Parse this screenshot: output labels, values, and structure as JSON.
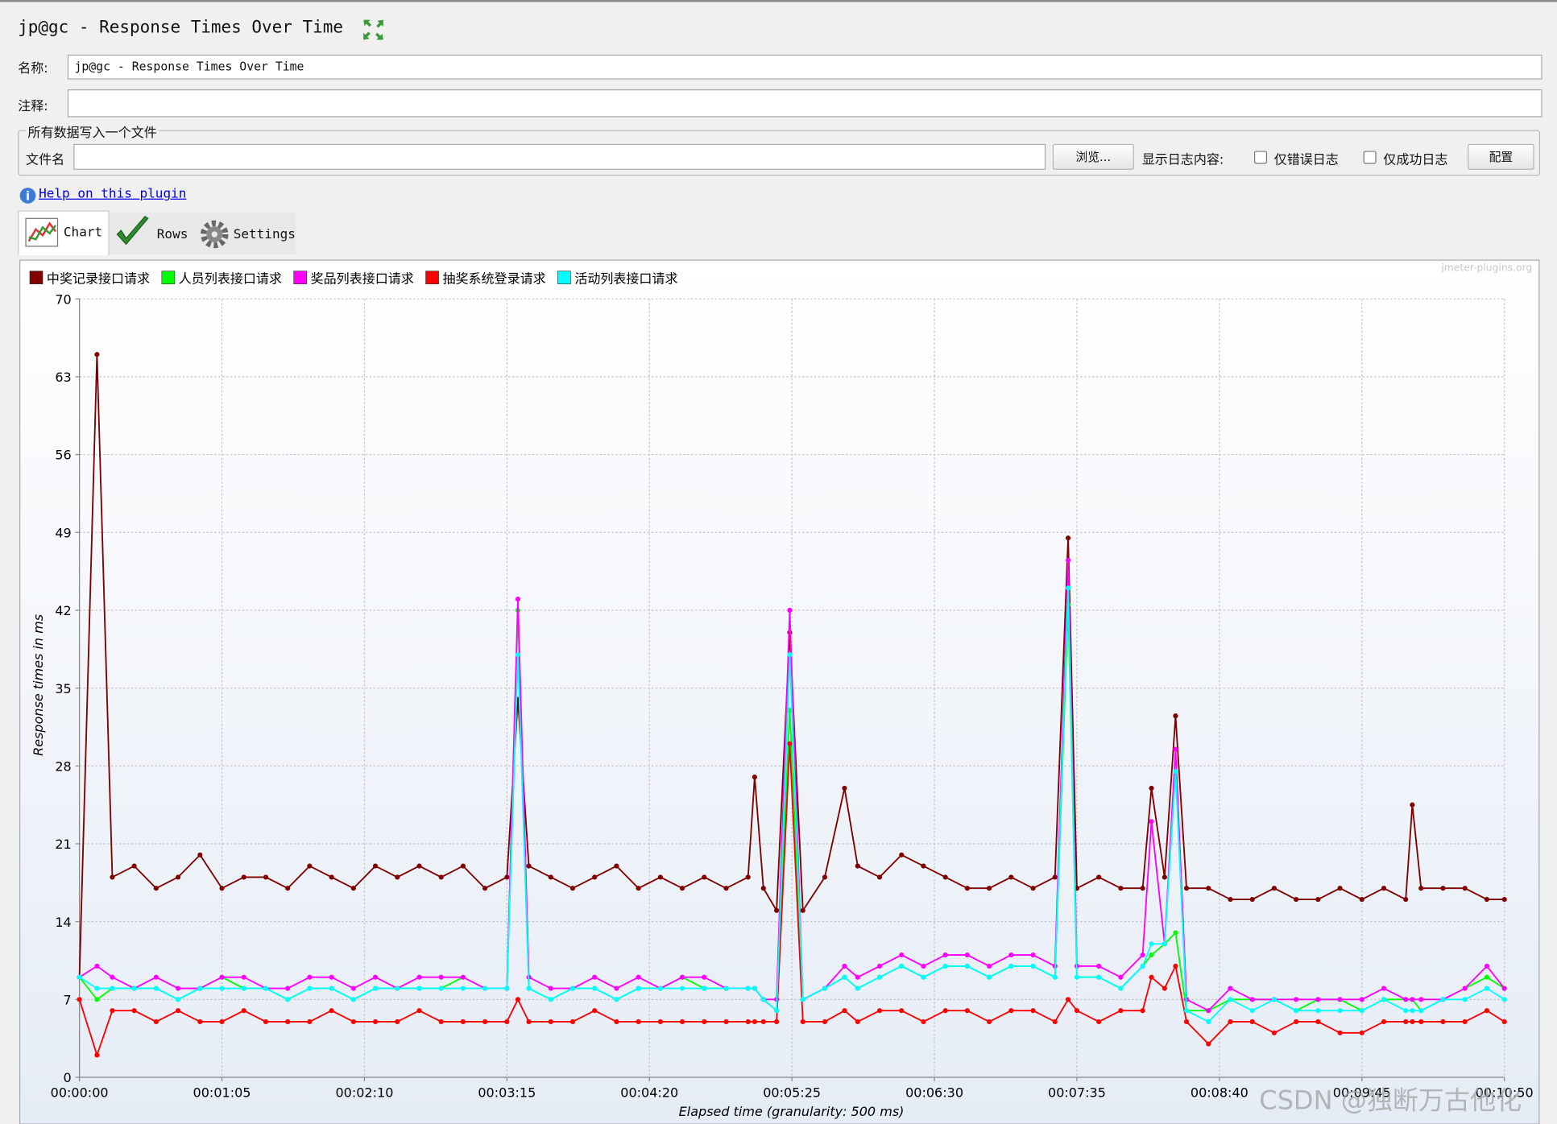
{
  "header": {
    "title": "jp@gc - Response Times Over Time"
  },
  "form": {
    "name_label": "名称:",
    "name_value": "jp@gc - Response Times Over Time",
    "comment_label": "注释:",
    "file_group": "所有数据写入一个文件",
    "file_label": "文件名",
    "browse": "浏览...",
    "log_label": "显示日志内容:",
    "errors_only": "仅错误日志",
    "success_only": "仅成功日志",
    "configure": "配置"
  },
  "help_link": "Help on this plugin",
  "tabs": [
    "Chart",
    "Rows",
    "Settings"
  ],
  "watermarks": {
    "plugin": "jmeter-plugins.org",
    "csdn": "CSDN @独断万古他化"
  },
  "chart_data": {
    "type": "line",
    "y_label": "Response times in ms",
    "x_label": "Elapsed time (granularity: 500 ms)",
    "xlim": [
      0,
      650
    ],
    "xticks": [
      {
        "value": 0,
        "label": "00:00:00"
      },
      {
        "value": 65,
        "label": "00:01:05"
      },
      {
        "value": 130,
        "label": "00:02:10"
      },
      {
        "value": 195,
        "label": "00:03:15"
      },
      {
        "value": 260,
        "label": "00:04:20"
      },
      {
        "value": 325,
        "label": "00:05:25"
      },
      {
        "value": 390,
        "label": "00:06:30"
      },
      {
        "value": 455,
        "label": "00:07:35"
      },
      {
        "value": 520,
        "label": "00:08:40"
      },
      {
        "value": 585,
        "label": "00:09:45"
      },
      {
        "value": 650,
        "label": "00:10:50"
      }
    ],
    "ylim": [
      0,
      70
    ],
    "yticks": [
      0,
      7,
      14,
      21,
      28,
      35,
      42,
      49,
      56,
      63,
      70
    ],
    "grid": true,
    "x": [
      0,
      8,
      15,
      25,
      35,
      45,
      55,
      65,
      75,
      85,
      95,
      105,
      115,
      125,
      135,
      145,
      155,
      165,
      175,
      185,
      195,
      200,
      205,
      215,
      225,
      235,
      245,
      255,
      265,
      275,
      285,
      295,
      305,
      308,
      312,
      318,
      324,
      330,
      340,
      349,
      355,
      365,
      375,
      385,
      395,
      405,
      415,
      425,
      435,
      445,
      451,
      455,
      465,
      475,
      485,
      489,
      495,
      500,
      505,
      515,
      525,
      535,
      545,
      555,
      565,
      575,
      585,
      595,
      605,
      608,
      612,
      622,
      632,
      642,
      650
    ],
    "series": [
      {
        "name": "中奖记录接口请求",
        "color": "#800000",
        "values": [
          9,
          65,
          18,
          19,
          17,
          18,
          20,
          17,
          18,
          18,
          17,
          19,
          18,
          17,
          19,
          18,
          19,
          18,
          19,
          17,
          18,
          34,
          19,
          18,
          17,
          18,
          19,
          17,
          18,
          17,
          18,
          17,
          18,
          27,
          17,
          15,
          40,
          15,
          18,
          26,
          19,
          18,
          20,
          19,
          18,
          17,
          17,
          18,
          17,
          18,
          48.5,
          17,
          18,
          17,
          17,
          26,
          18,
          32.5,
          17,
          17,
          16,
          16,
          17,
          16,
          16,
          17,
          16,
          17,
          16,
          24.5,
          17,
          17,
          17,
          16,
          16
        ]
      },
      {
        "name": "人员列表接口请求",
        "color": "#00ff00",
        "values": [
          9,
          7,
          8,
          8,
          8,
          7,
          8,
          9,
          8,
          8,
          7,
          8,
          8,
          7,
          8,
          8,
          8,
          8,
          9,
          8,
          8,
          42,
          8,
          7,
          8,
          8,
          7,
          8,
          8,
          9,
          8,
          8,
          8,
          8,
          7,
          6,
          33,
          7,
          8,
          9,
          8,
          9,
          10,
          9,
          10,
          10,
          9,
          10,
          10,
          9,
          42.5,
          9,
          9,
          8,
          10,
          11,
          12,
          13,
          6,
          6,
          7,
          7,
          7,
          6,
          7,
          7,
          6,
          7,
          7,
          7,
          6,
          7,
          8,
          9,
          8
        ]
      },
      {
        "name": "奖品列表接口请求",
        "color": "#ff00ff",
        "values": [
          9,
          10,
          9,
          8,
          9,
          8,
          8,
          9,
          9,
          8,
          8,
          9,
          9,
          8,
          9,
          8,
          9,
          9,
          9,
          8,
          8,
          43,
          9,
          8,
          8,
          9,
          8,
          9,
          8,
          9,
          9,
          8,
          8,
          8,
          7,
          7,
          42,
          7,
          8,
          10,
          9,
          10,
          11,
          10,
          11,
          11,
          10,
          11,
          11,
          10,
          46.5,
          10,
          10,
          9,
          11,
          23,
          12,
          29.5,
          7,
          6,
          8,
          7,
          7,
          7,
          7,
          7,
          7,
          8,
          7,
          7,
          7,
          7,
          8,
          10,
          8
        ]
      },
      {
        "name": "抽奖系统登录请求",
        "color": "#ff0000",
        "values": [
          7,
          2,
          6,
          6,
          5,
          6,
          5,
          5,
          6,
          5,
          5,
          5,
          6,
          5,
          5,
          5,
          6,
          5,
          5,
          5,
          5,
          7,
          5,
          5,
          5,
          6,
          5,
          5,
          5,
          5,
          5,
          5,
          5,
          5,
          5,
          5,
          30,
          5,
          5,
          6,
          5,
          6,
          6,
          5,
          6,
          6,
          5,
          6,
          6,
          5,
          7,
          6,
          5,
          6,
          6,
          9,
          8,
          10,
          5,
          3,
          5,
          5,
          4,
          5,
          5,
          4,
          4,
          5,
          5,
          5,
          5,
          5,
          5,
          6,
          5
        ]
      },
      {
        "name": "活动列表接口请求",
        "color": "#00ffff",
        "values": [
          9,
          8,
          8,
          8,
          8,
          7,
          8,
          8,
          8,
          8,
          7,
          8,
          8,
          7,
          8,
          8,
          8,
          8,
          8,
          8,
          8,
          38,
          8,
          7,
          8,
          8,
          7,
          8,
          8,
          8,
          8,
          8,
          8,
          8,
          7,
          6,
          38,
          7,
          8,
          9,
          8,
          9,
          10,
          9,
          10,
          10,
          9,
          10,
          10,
          9,
          44,
          9,
          9,
          8,
          10,
          12,
          12,
          27.5,
          6,
          5,
          7,
          6,
          7,
          6,
          6,
          6,
          6,
          7,
          6,
          6,
          6,
          7,
          7,
          8,
          7
        ]
      }
    ]
  }
}
